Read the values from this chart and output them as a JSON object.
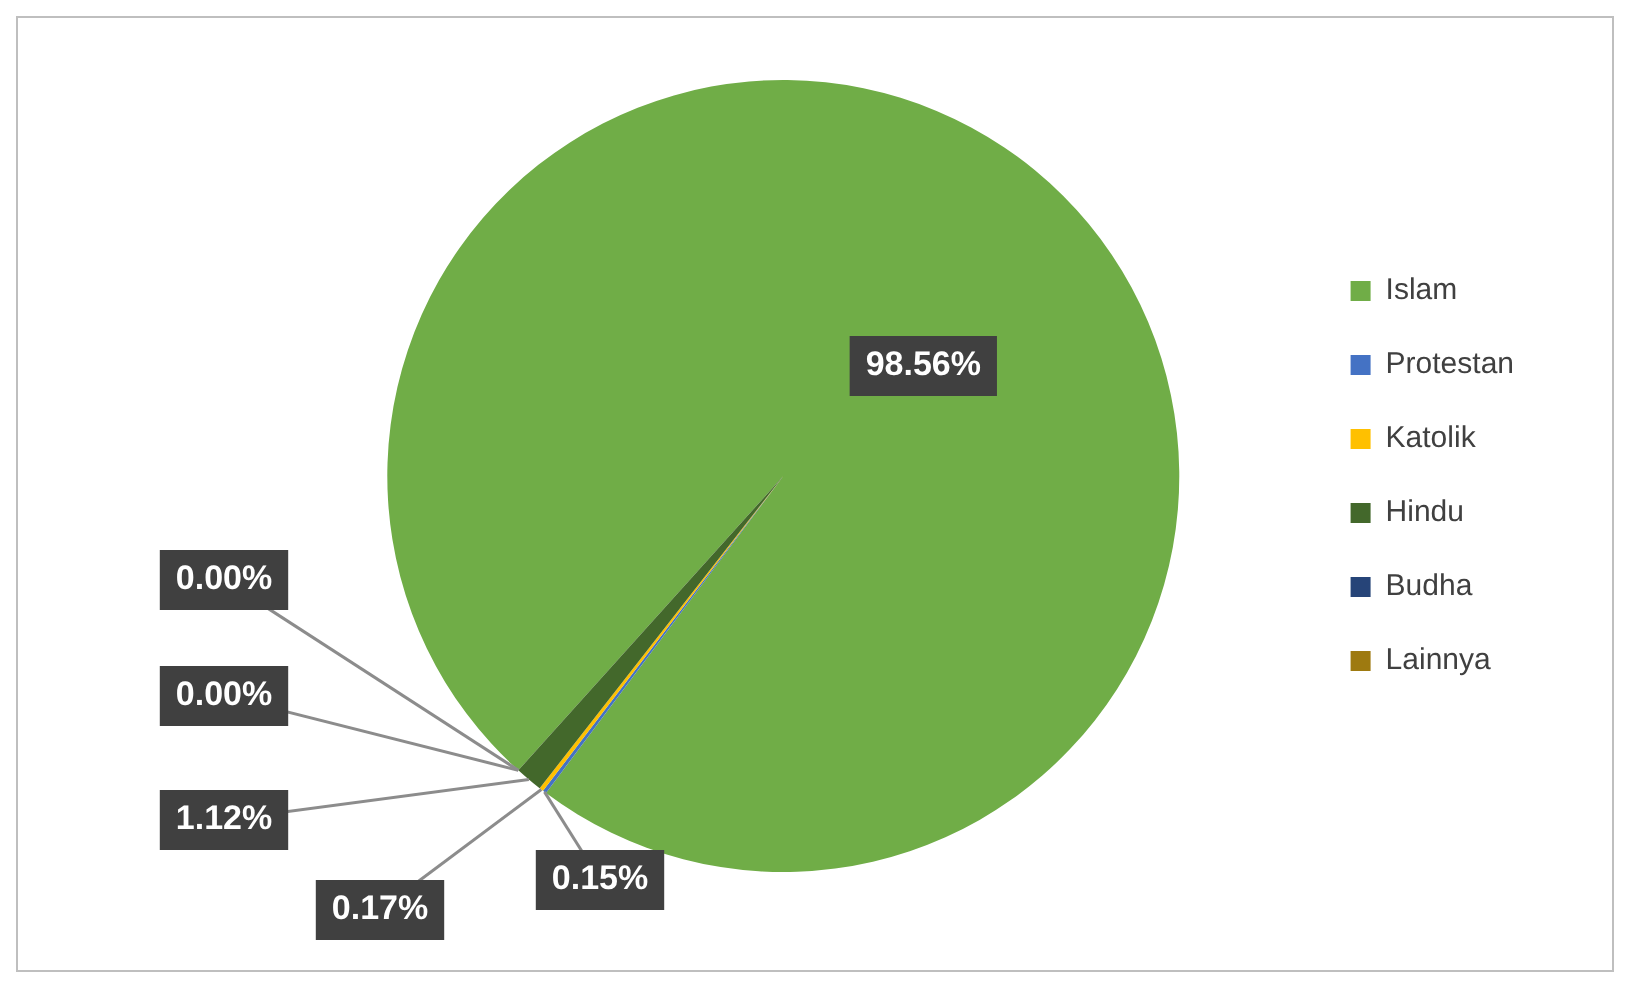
{
  "chart_data": {
    "type": "pie",
    "categories": [
      "Islam",
      "Protestan",
      "Katolik",
      "Hindu",
      "Budha",
      "Lainnya"
    ],
    "values": [
      98.56,
      0.15,
      0.17,
      1.12,
      0,
      0
    ],
    "value_labels": [
      "98.56%",
      "0.15%",
      "0.17%",
      "1.12%",
      "0.00%",
      "0.00%"
    ],
    "colors": [
      "#70ad47",
      "#4472c4",
      "#ffc000",
      "#43682b",
      "#264478",
      "#9e7a10"
    ],
    "legend": "right"
  }
}
